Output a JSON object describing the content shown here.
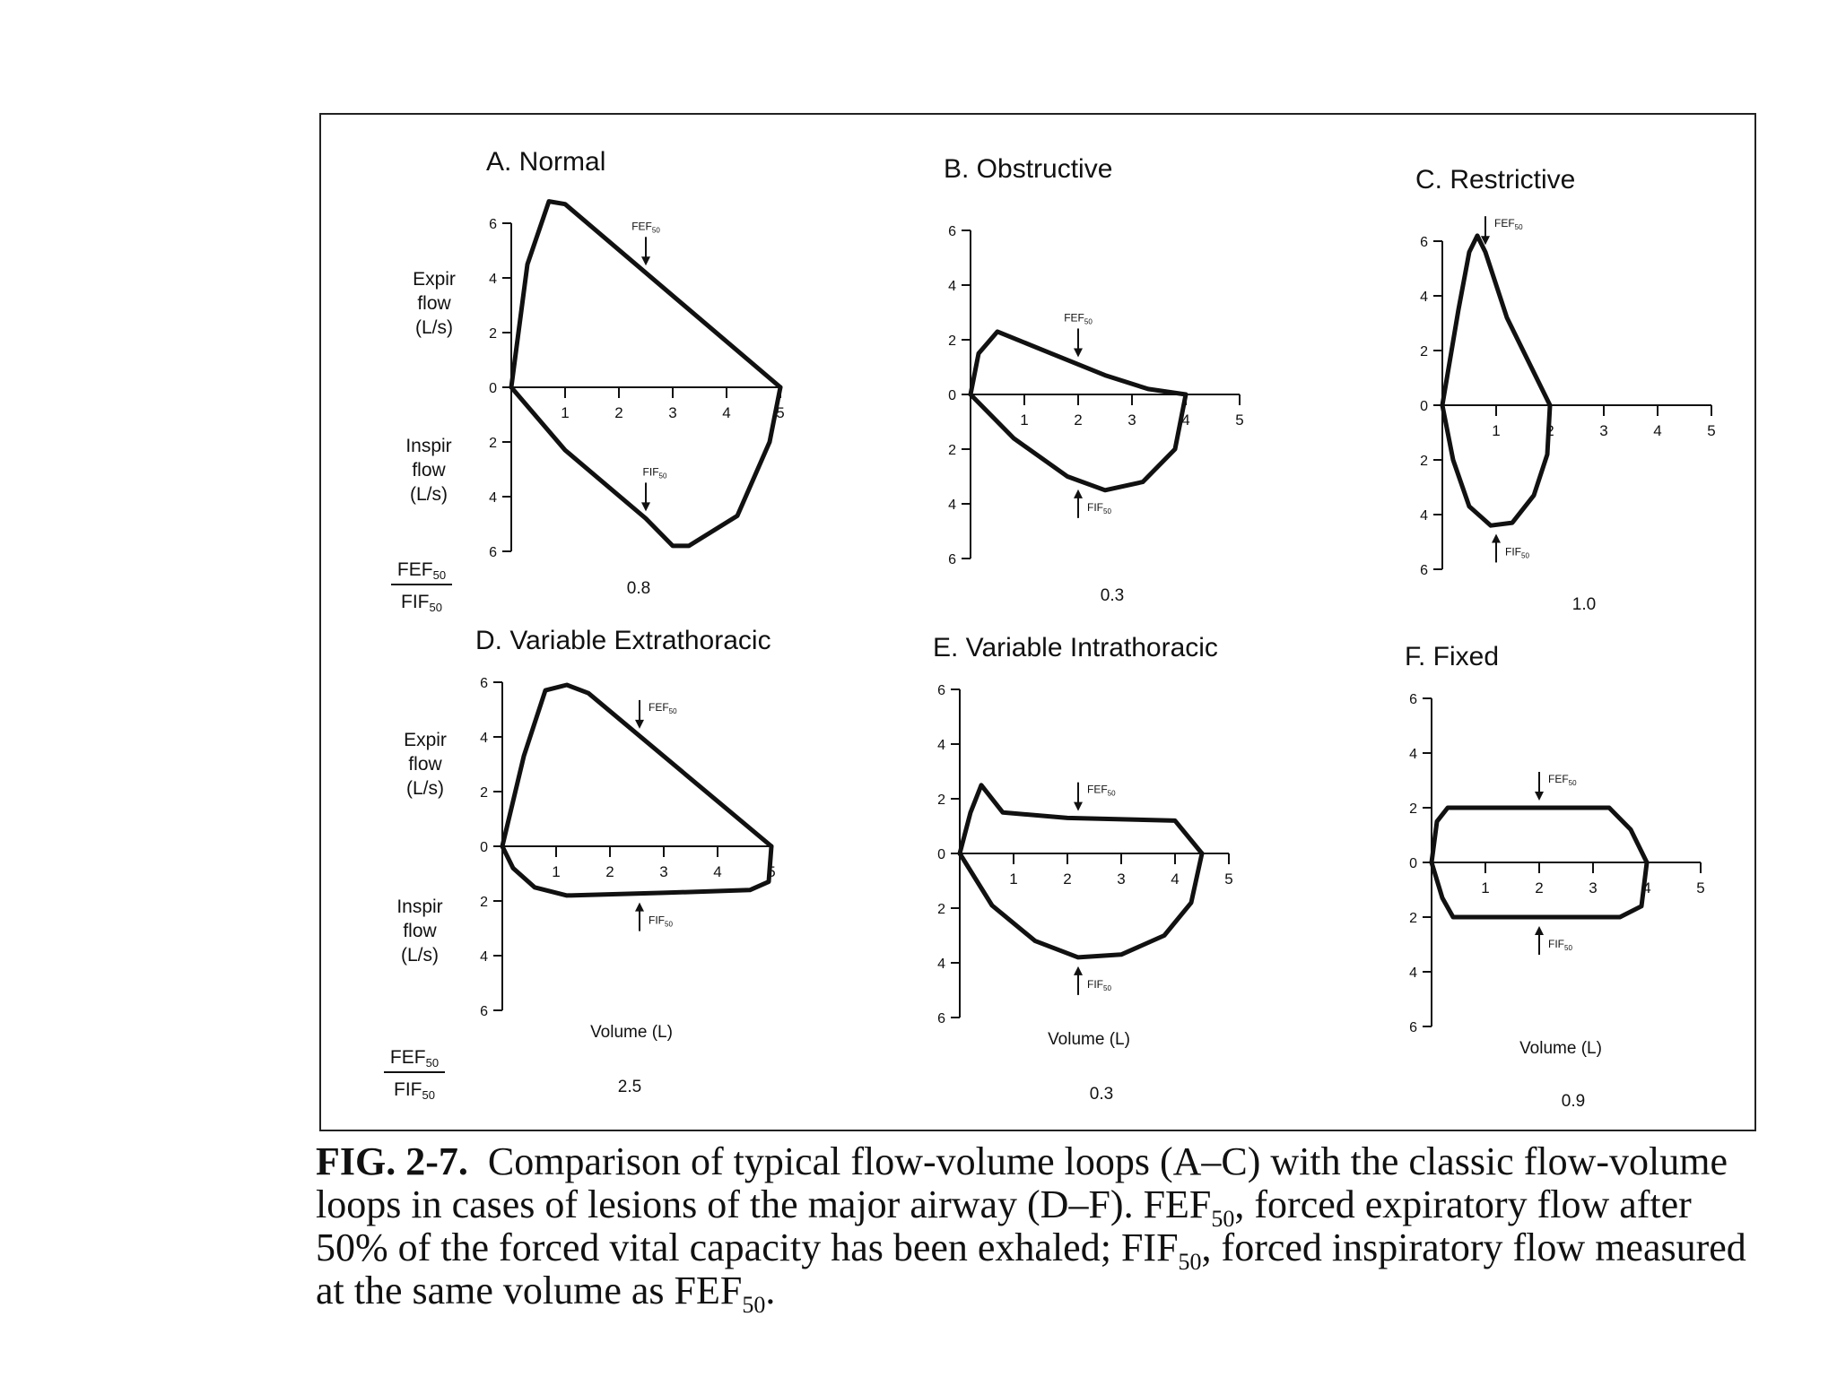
{
  "figure": {
    "ylabel_expir": [
      "Expir",
      "flow",
      "(L/s)"
    ],
    "ylabel_inspir": [
      "Inspir",
      "flow",
      "(L/s)"
    ],
    "ratio_label": {
      "numerator": "FEF",
      "denominator": "FIF",
      "sub": "50"
    },
    "xlabel": "Volume (L)",
    "arrow_labels": {
      "fef": "FEF",
      "fif": "FIF",
      "sub": "50"
    }
  },
  "chart_data": [
    {
      "type": "line",
      "id": "A",
      "title": "A.  Normal",
      "ratio": "0.8",
      "xlim": [
        0,
        5
      ],
      "ylim": [
        -6,
        6
      ],
      "xticks": [
        "1",
        "2",
        "3",
        "4",
        "5"
      ],
      "yticks": [
        "6",
        "4",
        "2",
        "0",
        "2",
        "4",
        "6"
      ],
      "expiratory": [
        [
          0,
          0
        ],
        [
          0.3,
          4.5
        ],
        [
          0.7,
          6.8
        ],
        [
          1,
          6.7
        ],
        [
          5,
          0
        ]
      ],
      "inspiratory": [
        [
          0,
          0
        ],
        [
          1,
          -2.3
        ],
        [
          2.5,
          -4.8
        ],
        [
          3,
          -5.8
        ],
        [
          3.3,
          -5.8
        ],
        [
          4.2,
          -4.7
        ],
        [
          4.8,
          -2
        ],
        [
          5,
          0
        ]
      ],
      "fef_arrow": {
        "x": 2.5,
        "dir": "down"
      },
      "fif_arrow": {
        "x": 2.5,
        "dir": "down"
      }
    },
    {
      "type": "line",
      "id": "B",
      "title": "B.  Obstructive",
      "ratio": "0.3",
      "xlim": [
        0,
        5
      ],
      "ylim": [
        -6,
        6
      ],
      "xticks": [
        "1",
        "2",
        "3",
        "4",
        "5"
      ],
      "yticks": [
        "6",
        "4",
        "2",
        "0",
        "2",
        "4",
        "6"
      ],
      "expiratory": [
        [
          0,
          0
        ],
        [
          0.15,
          1.5
        ],
        [
          0.5,
          2.3
        ],
        [
          1.5,
          1.5
        ],
        [
          2.5,
          0.7
        ],
        [
          3.3,
          0.2
        ],
        [
          4,
          0
        ]
      ],
      "inspiratory": [
        [
          0,
          0
        ],
        [
          0.8,
          -1.6
        ],
        [
          1.8,
          -3
        ],
        [
          2.5,
          -3.5
        ],
        [
          3.2,
          -3.2
        ],
        [
          3.8,
          -2
        ],
        [
          4,
          0
        ]
      ],
      "fef_arrow": {
        "x": 2,
        "dir": "down"
      },
      "fif_arrow": {
        "x": 2,
        "dir": "up"
      }
    },
    {
      "type": "line",
      "id": "C",
      "title": "C.  Restrictive",
      "ratio": "1.0",
      "xlim": [
        0,
        5
      ],
      "ylim": [
        -6,
        6
      ],
      "xticks": [
        "1",
        "2",
        "3",
        "4",
        "5"
      ],
      "yticks": [
        "6",
        "4",
        "2",
        "0",
        "2",
        "4",
        "6"
      ],
      "expiratory": [
        [
          0,
          0
        ],
        [
          0.3,
          3.5
        ],
        [
          0.5,
          5.6
        ],
        [
          0.65,
          6.2
        ],
        [
          0.8,
          5.6
        ],
        [
          1.2,
          3.2
        ],
        [
          2,
          0
        ]
      ],
      "inspiratory": [
        [
          0,
          0
        ],
        [
          0.2,
          -2
        ],
        [
          0.5,
          -3.7
        ],
        [
          0.9,
          -4.4
        ],
        [
          1.3,
          -4.3
        ],
        [
          1.7,
          -3.3
        ],
        [
          1.95,
          -1.8
        ],
        [
          2,
          0
        ]
      ],
      "fef_arrow": {
        "x": 0.8,
        "dir": "down"
      },
      "fif_arrow": {
        "x": 1,
        "dir": "up"
      }
    },
    {
      "type": "line",
      "id": "D",
      "title": "D.  Variable Extrathoracic",
      "ratio": "2.5",
      "xlim": [
        0,
        5
      ],
      "ylim": [
        -6,
        6
      ],
      "xticks": [
        "1",
        "2",
        "3",
        "4",
        "5"
      ],
      "yticks": [
        "6",
        "4",
        "2",
        "0",
        "2",
        "4",
        "6"
      ],
      "expiratory": [
        [
          0,
          0
        ],
        [
          0.4,
          3.3
        ],
        [
          0.8,
          5.7
        ],
        [
          1.2,
          5.9
        ],
        [
          1.6,
          5.6
        ],
        [
          5,
          0
        ]
      ],
      "inspiratory": [
        [
          0,
          0
        ],
        [
          0.2,
          -0.8
        ],
        [
          0.6,
          -1.5
        ],
        [
          1.2,
          -1.8
        ],
        [
          3,
          -1.7
        ],
        [
          4.6,
          -1.6
        ],
        [
          4.95,
          -1.3
        ],
        [
          5,
          0
        ]
      ],
      "fef_arrow": {
        "x": 2.55,
        "dir": "down"
      },
      "fif_arrow": {
        "x": 2.55,
        "dir": "up"
      }
    },
    {
      "type": "line",
      "id": "E",
      "title": "E.  Variable Intrathoracic",
      "ratio": "0.3",
      "xlim": [
        0,
        5
      ],
      "ylim": [
        -6,
        6
      ],
      "xticks": [
        "1",
        "2",
        "3",
        "4",
        "5"
      ],
      "yticks": [
        "6",
        "4",
        "2",
        "0",
        "2",
        "4",
        "6"
      ],
      "expiratory": [
        [
          0,
          0
        ],
        [
          0.2,
          1.5
        ],
        [
          0.4,
          2.5
        ],
        [
          0.8,
          1.5
        ],
        [
          2,
          1.3
        ],
        [
          4,
          1.2
        ],
        [
          4.5,
          0
        ]
      ],
      "inspiratory": [
        [
          0,
          0
        ],
        [
          0.6,
          -1.9
        ],
        [
          1.4,
          -3.2
        ],
        [
          2.2,
          -3.8
        ],
        [
          3,
          -3.7
        ],
        [
          3.8,
          -3
        ],
        [
          4.3,
          -1.8
        ],
        [
          4.5,
          0
        ]
      ],
      "fef_arrow": {
        "x": 2.2,
        "dir": "down"
      },
      "fif_arrow": {
        "x": 2.2,
        "dir": "up"
      }
    },
    {
      "type": "line",
      "id": "F",
      "title": "F.  Fixed",
      "ratio": "0.9",
      "xlim": [
        0,
        5
      ],
      "ylim": [
        -6,
        6
      ],
      "xticks": [
        "1",
        "2",
        "3",
        "4",
        "5"
      ],
      "yticks": [
        "6",
        "4",
        "2",
        "0",
        "2",
        "4",
        "6"
      ],
      "expiratory": [
        [
          0,
          0
        ],
        [
          0.1,
          1.5
        ],
        [
          0.3,
          2
        ],
        [
          3.3,
          2
        ],
        [
          3.7,
          1.2
        ],
        [
          4,
          0
        ]
      ],
      "inspiratory": [
        [
          0,
          0
        ],
        [
          0.2,
          -1.3
        ],
        [
          0.4,
          -2
        ],
        [
          3.5,
          -2
        ],
        [
          3.9,
          -1.6
        ],
        [
          4,
          0
        ]
      ],
      "fef_arrow": {
        "x": 2,
        "dir": "down"
      },
      "fif_arrow": {
        "x": 2,
        "dir": "up"
      }
    }
  ],
  "caption": {
    "label": "FIG. 2-7.",
    "text_1": "Comparison of typical flow-volume loops (A–C) with the classic flow-volume loops in cases of lesions of the major airway (D–F). FEF",
    "sub_1": "50",
    "text_2": ", forced expiratory flow after 50% of the forced vital capacity has been exhaled; FIF",
    "sub_2": "50",
    "text_3": ", forced inspiratory flow measured at the same volume as FEF",
    "sub_3": "50",
    "text_4": "."
  }
}
